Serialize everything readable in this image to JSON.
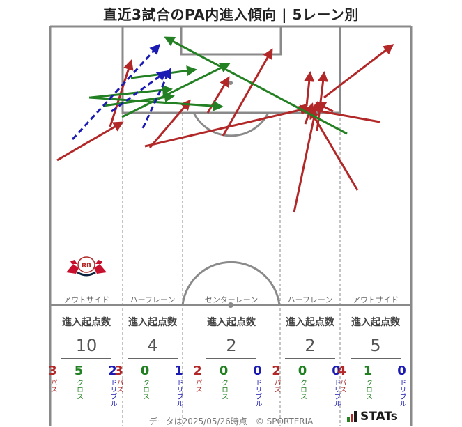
{
  "title": "直近3試合のPA内進入傾向 | 5レーン別",
  "lanes": [
    {
      "label": "アウトサイド",
      "total": "10",
      "pass": "3",
      "cross": "5",
      "dribble": "2"
    },
    {
      "label": "ハーフレーン",
      "total": "4",
      "pass": "3",
      "cross": "0",
      "dribble": "1"
    },
    {
      "label": "センターレーン",
      "total": "2",
      "pass": "2",
      "cross": "0",
      "dribble": "0"
    },
    {
      "label": "ハーフレーン",
      "total": "2",
      "pass": "2",
      "cross": "0",
      "dribble": "0"
    },
    {
      "label": "アウトサイド",
      "total": "5",
      "pass": "4",
      "cross": "1",
      "dribble": "0"
    }
  ],
  "stats_header": "進入起点数",
  "type_labels": {
    "pass": "パス",
    "cross": "クロス",
    "dribble": "ドリブル"
  },
  "footer": "データは2025/05/26時点　© SPORTERIA",
  "brand": "STATs",
  "club_logo_text": "RB",
  "club_logo_subtext": "LEIPZIG",
  "colors": {
    "pass": "#b22828",
    "cross": "#238023",
    "dribble": "#1b1bb3",
    "pitch_line": "#8a8a8a"
  },
  "chart_data": {
    "type": "diagram",
    "arrows": [
      {
        "kind": "pass"
      },
      {
        "kind": "pass"
      },
      {
        "kind": "pass"
      },
      {
        "kind": "pass"
      },
      {
        "kind": "pass"
      },
      {
        "kind": "pass"
      },
      {
        "kind": "pass"
      },
      {
        "kind": "pass"
      },
      {
        "kind": "pass"
      },
      {
        "kind": "pass"
      },
      {
        "kind": "pass"
      },
      {
        "kind": "pass"
      },
      {
        "kind": "pass"
      },
      {
        "kind": "pass"
      },
      {
        "kind": "cross"
      },
      {
        "kind": "cross"
      },
      {
        "kind": "cross"
      },
      {
        "kind": "cross"
      },
      {
        "kind": "cross"
      },
      {
        "kind": "cross"
      },
      {
        "kind": "dribble"
      },
      {
        "kind": "dribble"
      },
      {
        "kind": "dribble"
      }
    ]
  }
}
